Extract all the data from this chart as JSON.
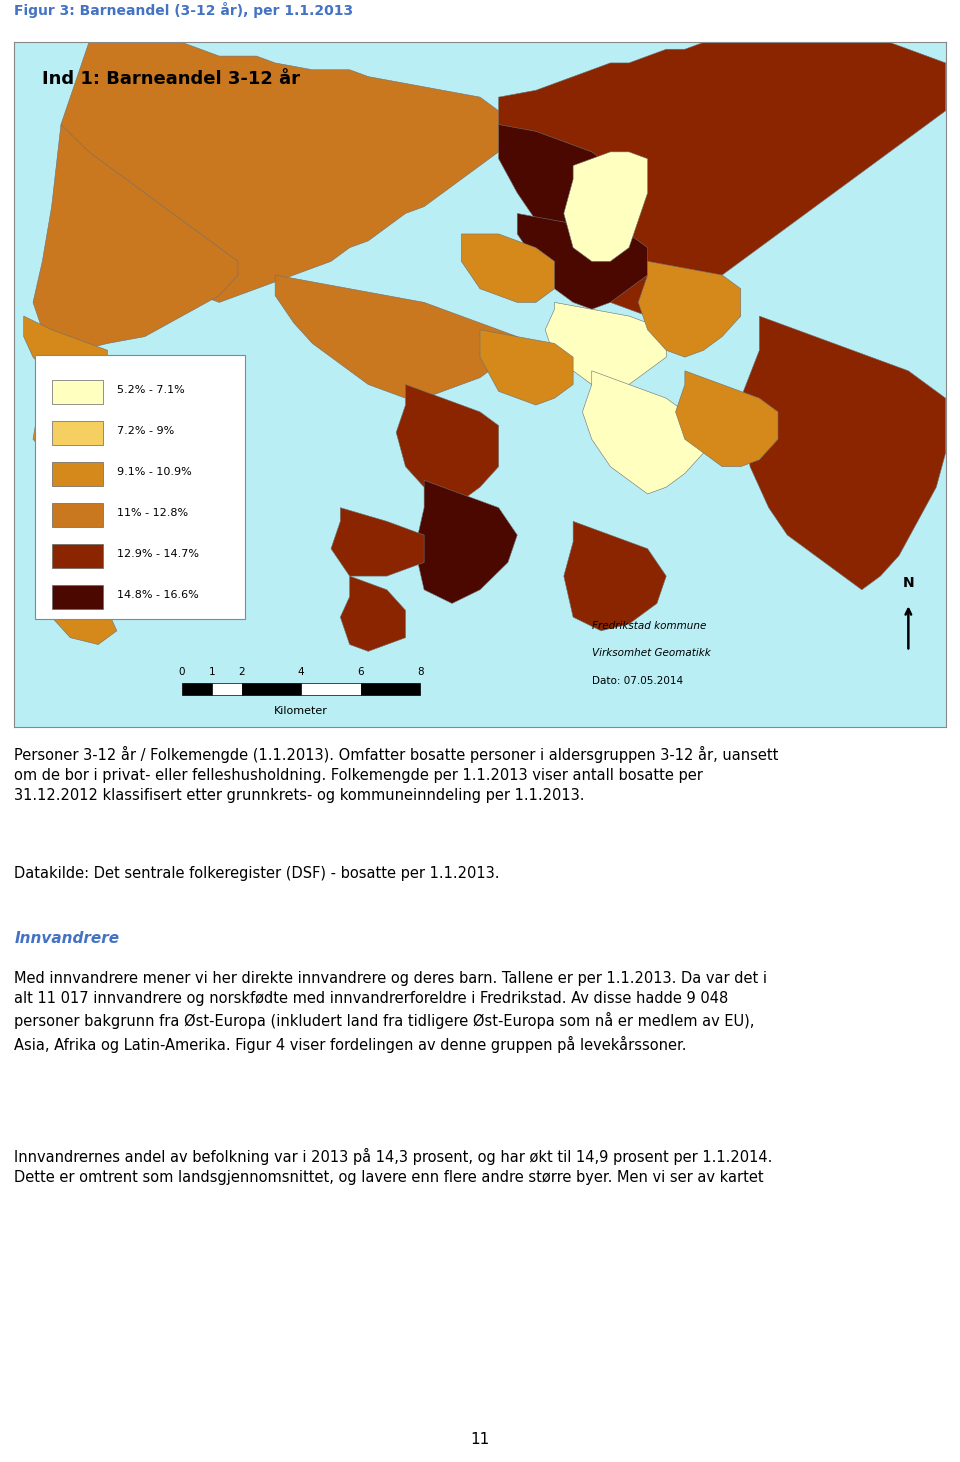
{
  "figure_title": "Figur 3: Barneandel (3-12 år), per 1.1.2013",
  "figure_title_color": "#4472C4",
  "map_title": "Ind 1: Barneandel 3-12 år",
  "map_bg_color": "#B8EEF4",
  "legend_entries": [
    {
      "label": "5.2% - 7.1%",
      "color": "#FFFFC0"
    },
    {
      "label": "7.2% - 9%",
      "color": "#F5D060"
    },
    {
      "label": "9.1% - 10.9%",
      "color": "#D4891A"
    },
    {
      "label": "11% - 12.8%",
      "color": "#C97820"
    },
    {
      "label": "12.9% - 14.7%",
      "color": "#8B2500"
    },
    {
      "label": "14.8% - 16.6%",
      "color": "#4A0800"
    }
  ],
  "scale_bar_label": "Kilometer",
  "scale_ticks": [
    "0",
    "1",
    "2",
    "",
    "4",
    "",
    "6",
    "",
    "8"
  ],
  "attribution_line1": "Fredrikstad kommune",
  "attribution_line2": "Virksomhet Geomatikk",
  "attribution_line3": "Dato: 07.05.2014",
  "page_number": "11",
  "innvandrere_heading": "Innvandrere",
  "innvandrere_color": "#4472C4",
  "body_fontsize": 10.5,
  "title_fontsize": 10
}
